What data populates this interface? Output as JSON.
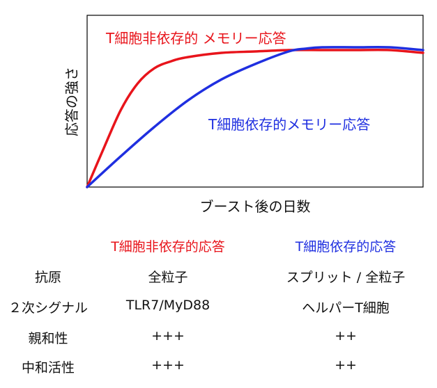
{
  "chart_data": {
    "type": "line",
    "xlabel": "ブースト後の日数",
    "ylabel": "応答の強さ",
    "xlim": [
      0,
      100
    ],
    "ylim": [
      0,
      100
    ],
    "series": [
      {
        "name": "T細胞非依存的 メモリー応答",
        "color": "#e8141b",
        "x": [
          0,
          5,
          10,
          15,
          20,
          25,
          30,
          40,
          50,
          60,
          70,
          80,
          90,
          100
        ],
        "y": [
          0,
          28,
          55,
          74,
          85,
          90,
          93,
          96,
          97,
          98,
          98,
          98,
          98,
          96
        ]
      },
      {
        "name": "T細胞依存的メモリー応答",
        "color": "#1f2fe0",
        "x": [
          0,
          10,
          20,
          30,
          40,
          50,
          60,
          65,
          70,
          80,
          90,
          100
        ],
        "y": [
          0,
          22,
          43,
          62,
          77,
          88,
          97,
          99,
          100,
          100,
          100,
          98
        ]
      }
    ]
  },
  "table": {
    "col_headers": [
      "T細胞非依存的応答",
      "T細胞依存的応答"
    ],
    "rows": [
      {
        "label": "抗原",
        "values": [
          "全粒子",
          "スプリット / 全粒子"
        ]
      },
      {
        "label": "２次シグナル",
        "values": [
          "TLR7/MyD88",
          "ヘルパーT細胞"
        ]
      },
      {
        "label": "親和性",
        "values": [
          "+++",
          "++"
        ]
      },
      {
        "label": "中和活性",
        "values": [
          "+++",
          "++"
        ]
      }
    ]
  },
  "colors": {
    "red": "#e8141b",
    "blue": "#1f2fe0"
  }
}
